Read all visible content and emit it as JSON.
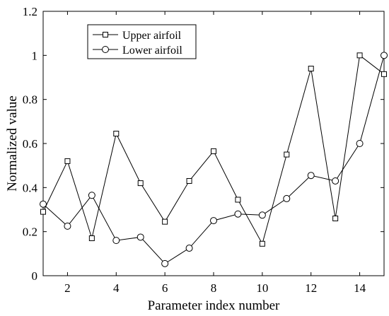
{
  "chart_data": {
    "type": "line",
    "xlabel": "Parameter index number",
    "ylabel": "Normalized value",
    "xlim": [
      1,
      15
    ],
    "ylim": [
      0,
      1.2
    ],
    "x_ticks": [
      2,
      4,
      6,
      8,
      10,
      12,
      14
    ],
    "x_tick_labels": [
      "2",
      "4",
      "6",
      "8",
      "10",
      "12",
      "14"
    ],
    "y_ticks": [
      0,
      0.2,
      0.4,
      0.6,
      0.8,
      1,
      1.2
    ],
    "y_tick_labels": [
      "0",
      "0.2",
      "0.4",
      "0.6",
      "0.8",
      "1",
      "1.2"
    ],
    "grid": false,
    "legend_position": "top-left",
    "x": [
      1,
      2,
      3,
      4,
      5,
      6,
      7,
      8,
      9,
      10,
      11,
      12,
      13,
      14,
      15
    ],
    "series": [
      {
        "name": "Upper airfoil",
        "marker": "square",
        "values": [
          0.29,
          0.52,
          0.17,
          0.645,
          0.42,
          0.245,
          0.43,
          0.565,
          0.345,
          0.145,
          0.55,
          0.94,
          0.26,
          1.0,
          0.915
        ]
      },
      {
        "name": "Lower airfoil",
        "marker": "circle",
        "values": [
          0.325,
          0.225,
          0.365,
          0.16,
          0.175,
          0.055,
          0.125,
          0.25,
          0.28,
          0.275,
          0.35,
          0.455,
          0.43,
          0.6,
          1.0
        ]
      }
    ]
  }
}
